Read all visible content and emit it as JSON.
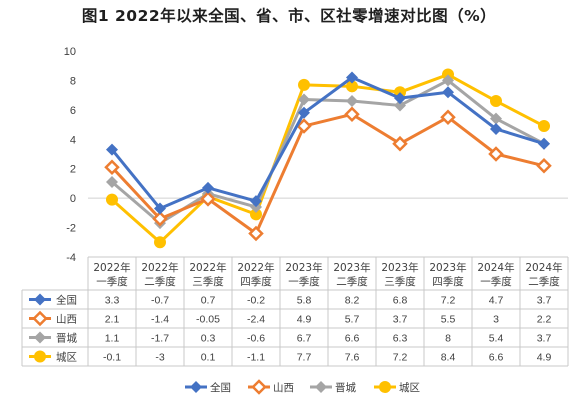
{
  "title": "图1  2022年以来全国、省、市、区社零增速对比图（%）",
  "chart_data": {
    "type": "line",
    "categories": [
      [
        "2022年",
        "一季度"
      ],
      [
        "2022年",
        "二季度"
      ],
      [
        "2022年",
        "三季度"
      ],
      [
        "2022年",
        "四季度"
      ],
      [
        "2023年",
        "一季度"
      ],
      [
        "2023年",
        "二季度"
      ],
      [
        "2023年",
        "三季度"
      ],
      [
        "2023年",
        "四季度"
      ],
      [
        "2024年",
        "一季度"
      ],
      [
        "2024年",
        "二季度"
      ]
    ],
    "ylim": [
      -4,
      10
    ],
    "yticks": [
      10,
      8,
      6,
      4,
      2,
      0,
      -2,
      -4
    ],
    "grid": false,
    "legend_position": "bottom",
    "series": [
      {
        "name": "全国",
        "color": "#4472C4",
        "marker": "diamond-arrow",
        "values": [
          3.3,
          -0.7,
          0.7,
          -0.2,
          5.8,
          8.2,
          6.8,
          7.2,
          4.7,
          3.7
        ],
        "labels": [
          "3.3",
          "-0.7",
          "0.7",
          "-0.2",
          "5.8",
          "8.2",
          "6.8",
          "7.2",
          "4.7",
          "3.7"
        ]
      },
      {
        "name": "山西",
        "color": "#ED7D31",
        "marker": "chevron",
        "values": [
          2.1,
          -1.4,
          -0.05,
          -2.4,
          4.9,
          5.7,
          3.7,
          5.5,
          3,
          2.2
        ],
        "labels": [
          "2.1",
          "-1.4",
          "-0.05",
          "-2.4",
          "4.9",
          "5.7",
          "3.7",
          "5.5",
          "3",
          "2.2"
        ]
      },
      {
        "name": "晋城",
        "color": "#A5A5A5",
        "marker": "diamond",
        "values": [
          1.1,
          -1.7,
          0.3,
          -0.6,
          6.7,
          6.6,
          6.3,
          8,
          5.4,
          3.7
        ],
        "labels": [
          "1.1",
          "-1.7",
          "0.3",
          "-0.6",
          "6.7",
          "6.6",
          "6.3",
          "8",
          "5.4",
          "3.7"
        ]
      },
      {
        "name": "城区",
        "color": "#FFC000",
        "marker": "circle",
        "values": [
          -0.1,
          -3,
          0.1,
          -1.1,
          7.7,
          7.6,
          7.2,
          8.4,
          6.6,
          4.9
        ],
        "labels": [
          "-0.1",
          "-3",
          "0.1",
          "-1.1",
          "7.7",
          "7.6",
          "7.2",
          "8.4",
          "6.6",
          "4.9"
        ]
      }
    ]
  }
}
